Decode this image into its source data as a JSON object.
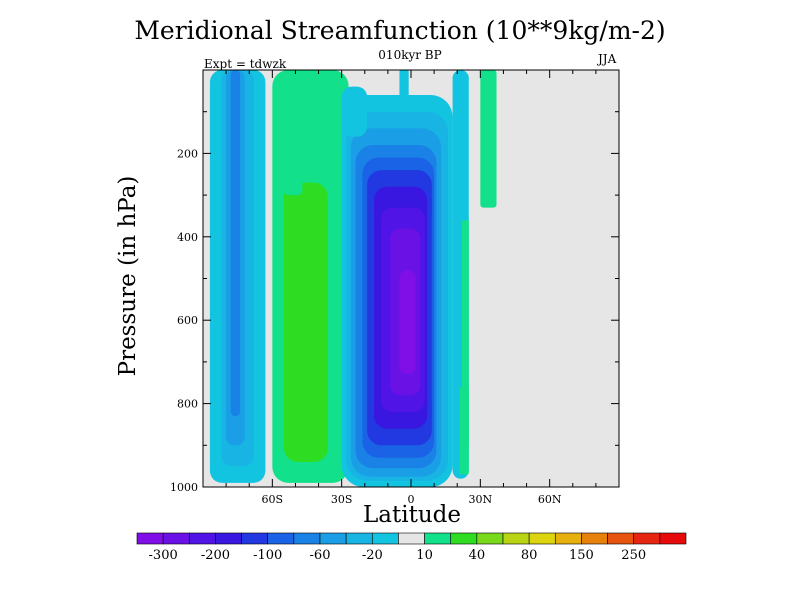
{
  "chart_data": {
    "type": "contour",
    "title": "Meridional Streamfunction (10**9kg/m-2)",
    "subtitle": "010kyr BP",
    "left_string": "Expt = tdwzk",
    "right_string": "JJA",
    "xlabel": "Latitude",
    "ylabel": "Pressure (in hPa)",
    "xlim": [
      -90,
      90
    ],
    "ylim": [
      1000,
      0
    ],
    "x_ticks": [
      -60,
      -30,
      0,
      30,
      60
    ],
    "x_tick_labels": [
      "60S",
      "30S",
      "0",
      "30N",
      "60N"
    ],
    "y_ticks": [
      200,
      400,
      600,
      800,
      1000
    ],
    "y_tick_labels": [
      "200",
      "400",
      "600",
      "800",
      "1000"
    ],
    "background_color": "#e6e6e6",
    "levels": [
      -300,
      -250,
      -200,
      -150,
      -100,
      -80,
      -60,
      -40,
      -20,
      -10,
      10,
      20,
      40,
      60,
      80,
      100,
      150,
      200,
      250,
      300
    ],
    "colorbar_labels": [
      "-300",
      "-200",
      "-100",
      "-60",
      "-20",
      "10",
      "40",
      "80",
      "150",
      "250"
    ],
    "colorbar_label_index": [
      1,
      3,
      5,
      7,
      9,
      11,
      13,
      15,
      17,
      19
    ],
    "colors": [
      "#7f0fe6",
      "#6a12e6",
      "#5014e6",
      "#3a17e0",
      "#2238e0",
      "#1b63e6",
      "#1a82e6",
      "#1a9ee6",
      "#18b4e3",
      "#12c4e0",
      "#e6e6e6",
      "#12e08a",
      "#2edc22",
      "#7ad81a",
      "#b8d414",
      "#dcd40e",
      "#e6b00e",
      "#e6820c",
      "#e65410",
      "#e62612",
      "#e60a0a"
    ],
    "features": [
      {
        "name": "tropical-cell",
        "lat": [
          -20,
          8
        ],
        "p_top": 150,
        "min_value": -300
      },
      {
        "name": "southern-cell",
        "lat": [
          -50,
          -33
        ],
        "p_top": 60,
        "max_value": 20
      },
      {
        "name": "southern-negative",
        "lat": [
          -90,
          -66
        ],
        "p_top": 0,
        "min_value": -60
      },
      {
        "name": "northern-positive",
        "lat": [
          32,
          38
        ],
        "p_top": 0,
        "max_value": 10
      }
    ]
  }
}
